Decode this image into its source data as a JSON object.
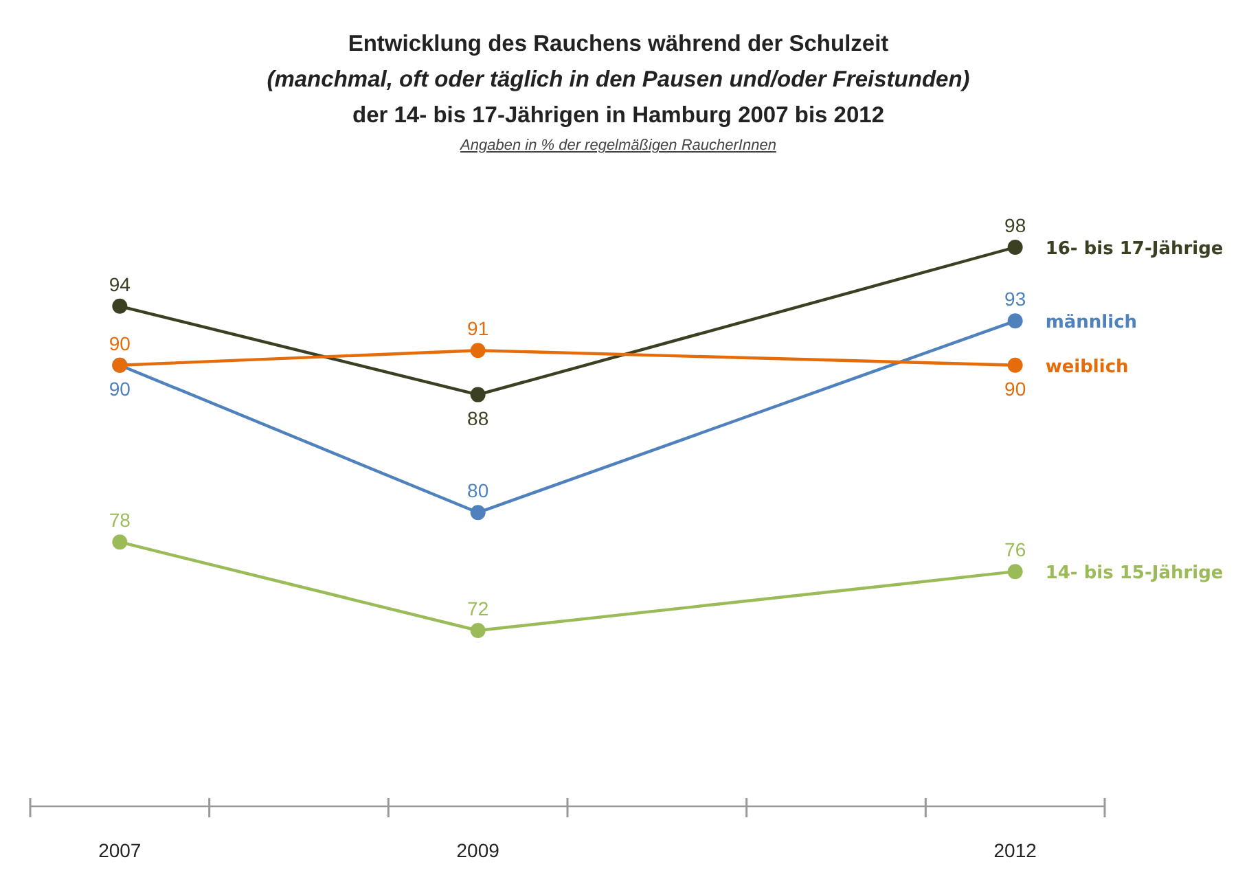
{
  "chart_data": {
    "type": "line",
    "title": "Entwicklung des Rauchens während der Schulzeit\n(manchmal, oft oder täglich in den Pausen und/oder Freistunden)\nder 14- bis 17-Jährigen in Hamburg 2007 bis 2012",
    "subtitle": "Angaben in % der regelmäßigen RaucherInnen",
    "x": [
      2007,
      2009,
      2012
    ],
    "xlim": [
      2006.5,
      2012.5
    ],
    "xticks": [
      2007,
      2009,
      2012
    ],
    "series": [
      {
        "name": "16- bis 17-Jährige",
        "color": "#3b4022",
        "values": [
          94,
          88,
          98
        ]
      },
      {
        "name": "männlich",
        "color": "#4f81bd",
        "values": [
          90,
          80,
          93
        ]
      },
      {
        "name": "weiblich",
        "color": "#e46c0a",
        "values": [
          90,
          91,
          90
        ]
      },
      {
        "name": "14- bis 15-Jährige",
        "color": "#9bbb59",
        "values": [
          78,
          72,
          76
        ]
      }
    ],
    "data_labels": true,
    "marker": "circle",
    "line_style": "solid",
    "tick_labels": "x"
  }
}
